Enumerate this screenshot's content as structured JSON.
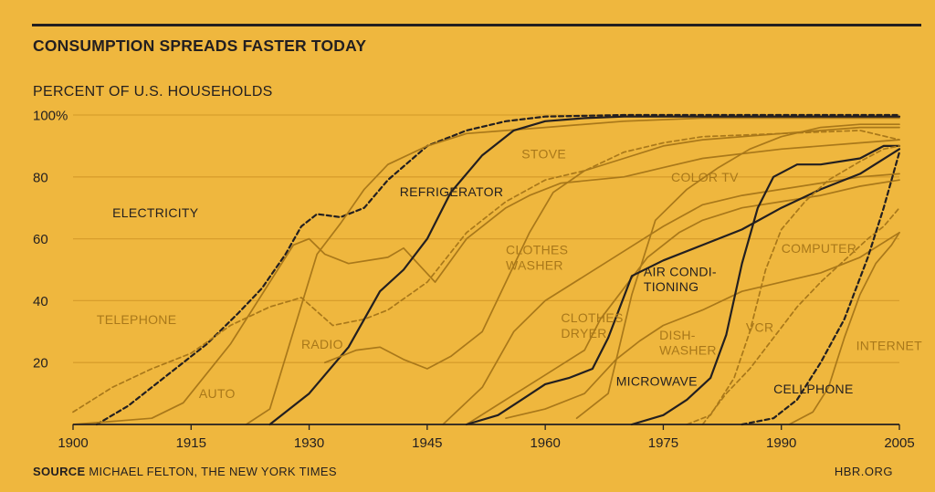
{
  "title": "CONSUMPTION SPREADS FASTER TODAY",
  "source_label": "SOURCE",
  "source_text": "MICHAEL FELTON, THE NEW YORK TIMES",
  "site": "HBR.ORG",
  "colors": {
    "background": "#efb73e",
    "dark": "#231f20",
    "light": "#a9781a",
    "grid": "#d89e2c"
  },
  "chart_data": {
    "type": "line",
    "ylabel": "PERCENT OF U.S. HOUSEHOLDS",
    "xlim": [
      1900,
      2005
    ],
    "ylim": [
      0,
      100
    ],
    "x_ticks": [
      "1900",
      "1915",
      "1930",
      "1945",
      "1960",
      "1975",
      "1990",
      "2005"
    ],
    "y_ticks": [
      "100%",
      "80",
      "60",
      "40",
      "20"
    ],
    "series": [
      {
        "name": "ELECTRICITY",
        "color": "dark",
        "dash": true,
        "points": [
          [
            1903,
            0
          ],
          [
            1907,
            6
          ],
          [
            1912,
            16
          ],
          [
            1917,
            26
          ],
          [
            1921,
            36
          ],
          [
            1924,
            44
          ],
          [
            1927,
            55
          ],
          [
            1929,
            64
          ],
          [
            1931,
            68
          ],
          [
            1934,
            67
          ],
          [
            1937,
            70
          ],
          [
            1940,
            79
          ],
          [
            1945,
            90
          ],
          [
            1950,
            95
          ],
          [
            1955,
            98
          ],
          [
            1960,
            99.5
          ],
          [
            1970,
            100
          ],
          [
            2005,
            100
          ]
        ]
      },
      {
        "name": "TELEPHONE",
        "color": "light",
        "dash": true,
        "points": [
          [
            1900,
            4
          ],
          [
            1905,
            12
          ],
          [
            1910,
            18
          ],
          [
            1915,
            23
          ],
          [
            1920,
            32
          ],
          [
            1925,
            38
          ],
          [
            1929,
            41
          ],
          [
            1933,
            32
          ],
          [
            1937,
            34
          ],
          [
            1940,
            37
          ],
          [
            1945,
            46
          ],
          [
            1950,
            62
          ],
          [
            1955,
            72
          ],
          [
            1960,
            79
          ],
          [
            1965,
            82
          ],
          [
            1970,
            88
          ],
          [
            1975,
            91
          ],
          [
            1980,
            93
          ],
          [
            1990,
            94
          ],
          [
            2000,
            95
          ],
          [
            2005,
            92
          ]
        ]
      },
      {
        "name": "AUTO",
        "color": "light",
        "dash": false,
        "points": [
          [
            1900,
            0
          ],
          [
            1910,
            2
          ],
          [
            1914,
            7
          ],
          [
            1920,
            26
          ],
          [
            1925,
            46
          ],
          [
            1928,
            58
          ],
          [
            1930,
            60
          ],
          [
            1932,
            55
          ],
          [
            1935,
            52
          ],
          [
            1940,
            54
          ],
          [
            1942,
            57
          ],
          [
            1946,
            46
          ],
          [
            1950,
            60
          ],
          [
            1955,
            70
          ],
          [
            1958,
            74
          ],
          [
            1962,
            78
          ],
          [
            1970,
            80
          ],
          [
            1975,
            83
          ],
          [
            1980,
            86
          ],
          [
            1990,
            89
          ],
          [
            2000,
            91
          ],
          [
            2005,
            92
          ]
        ]
      },
      {
        "name": "RADIO",
        "color": "light",
        "dash": false,
        "points": [
          [
            1922,
            0
          ],
          [
            1925,
            5
          ],
          [
            1928,
            30
          ],
          [
            1931,
            55
          ],
          [
            1934,
            65
          ],
          [
            1937,
            76
          ],
          [
            1940,
            84
          ],
          [
            1945,
            90
          ],
          [
            1950,
            94
          ],
          [
            1960,
            96
          ],
          [
            1970,
            98
          ],
          [
            1980,
            99
          ],
          [
            2005,
            99
          ]
        ]
      },
      {
        "name": "REFRIGERATOR",
        "color": "dark",
        "dash": false,
        "points": [
          [
            1925,
            0
          ],
          [
            1930,
            10
          ],
          [
            1935,
            25
          ],
          [
            1939,
            43
          ],
          [
            1942,
            50
          ],
          [
            1945,
            60
          ],
          [
            1948,
            75
          ],
          [
            1952,
            87
          ],
          [
            1956,
            95
          ],
          [
            1960,
            98
          ],
          [
            1965,
            99
          ],
          [
            1970,
            99.5
          ],
          [
            2005,
            99.5
          ]
        ]
      },
      {
        "name": "STOVE",
        "color": "light",
        "dash": false,
        "points": [
          [
            1932,
            20
          ],
          [
            1936,
            24
          ],
          [
            1939,
            25
          ],
          [
            1942,
            21
          ],
          [
            1945,
            18
          ],
          [
            1948,
            22
          ],
          [
            1952,
            30
          ],
          [
            1955,
            46
          ],
          [
            1958,
            62
          ],
          [
            1961,
            75
          ],
          [
            1965,
            82
          ],
          [
            1970,
            86
          ],
          [
            1975,
            90
          ],
          [
            1980,
            92
          ],
          [
            1990,
            94
          ],
          [
            2000,
            96
          ],
          [
            2005,
            96
          ]
        ]
      },
      {
        "name": "CLOTHES WASHER",
        "color": "light",
        "dash": false,
        "points": [
          [
            1947,
            0
          ],
          [
            1952,
            12
          ],
          [
            1956,
            30
          ],
          [
            1960,
            40
          ],
          [
            1965,
            48
          ],
          [
            1970,
            56
          ],
          [
            1975,
            64
          ],
          [
            1980,
            71
          ],
          [
            1985,
            74
          ],
          [
            1990,
            76
          ],
          [
            1995,
            78
          ],
          [
            2000,
            80
          ],
          [
            2005,
            81
          ]
        ]
      },
      {
        "name": "CLOTHES DRYER",
        "color": "light",
        "dash": false,
        "points": [
          [
            1950,
            0
          ],
          [
            1955,
            8
          ],
          [
            1960,
            16
          ],
          [
            1965,
            24
          ],
          [
            1967,
            34
          ],
          [
            1970,
            44
          ],
          [
            1973,
            54
          ],
          [
            1977,
            62
          ],
          [
            1980,
            66
          ],
          [
            1985,
            70
          ],
          [
            1990,
            72
          ],
          [
            1995,
            74
          ],
          [
            2000,
            77
          ],
          [
            2005,
            79
          ]
        ]
      },
      {
        "name": "COLOR TV",
        "color": "light",
        "dash": false,
        "points": [
          [
            1964,
            2
          ],
          [
            1968,
            10
          ],
          [
            1971,
            42
          ],
          [
            1974,
            66
          ],
          [
            1978,
            76
          ],
          [
            1982,
            83
          ],
          [
            1986,
            89
          ],
          [
            1990,
            93
          ],
          [
            1995,
            96
          ],
          [
            2000,
            97
          ],
          [
            2005,
            97
          ]
        ]
      },
      {
        "name": "AIR CONDITIONING",
        "color": "dark",
        "dash": false,
        "points": [
          [
            1950,
            0
          ],
          [
            1954,
            3
          ],
          [
            1957,
            8
          ],
          [
            1960,
            13
          ],
          [
            1963,
            15
          ],
          [
            1966,
            18
          ],
          [
            1968,
            28
          ],
          [
            1971,
            48
          ],
          [
            1975,
            53
          ],
          [
            1980,
            58
          ],
          [
            1985,
            63
          ],
          [
            1990,
            70
          ],
          [
            1995,
            76
          ],
          [
            2000,
            81
          ],
          [
            2005,
            89
          ]
        ]
      },
      {
        "name": "DISHWASHER",
        "color": "light",
        "dash": false,
        "points": [
          [
            1955,
            2
          ],
          [
            1960,
            5
          ],
          [
            1965,
            10
          ],
          [
            1969,
            21
          ],
          [
            1972,
            27
          ],
          [
            1975,
            32
          ],
          [
            1980,
            37
          ],
          [
            1985,
            43
          ],
          [
            1990,
            46
          ],
          [
            1995,
            49
          ],
          [
            2000,
            54
          ],
          [
            2005,
            62
          ]
        ]
      },
      {
        "name": "MICROWAVE",
        "color": "dark",
        "dash": false,
        "points": [
          [
            1971,
            0
          ],
          [
            1975,
            3
          ],
          [
            1978,
            8
          ],
          [
            1981,
            15
          ],
          [
            1983,
            29
          ],
          [
            1985,
            52
          ],
          [
            1987,
            70
          ],
          [
            1989,
            80
          ],
          [
            1992,
            84
          ],
          [
            1995,
            84
          ],
          [
            2000,
            86
          ],
          [
            2003,
            90
          ],
          [
            2005,
            90
          ]
        ]
      },
      {
        "name": "VCR",
        "color": "light",
        "dash": true,
        "points": [
          [
            1978,
            0
          ],
          [
            1981,
            3
          ],
          [
            1984,
            15
          ],
          [
            1986,
            30
          ],
          [
            1988,
            50
          ],
          [
            1990,
            63
          ],
          [
            1993,
            72
          ],
          [
            1996,
            79
          ],
          [
            2000,
            85
          ],
          [
            2003,
            89
          ],
          [
            2005,
            90
          ]
        ]
      },
      {
        "name": "COMPUTER",
        "color": "light",
        "dash": true,
        "points": [
          [
            1980,
            0
          ],
          [
            1983,
            10
          ],
          [
            1986,
            18
          ],
          [
            1989,
            28
          ],
          [
            1992,
            38
          ],
          [
            1995,
            46
          ],
          [
            1998,
            53
          ],
          [
            2001,
            60
          ],
          [
            2003,
            64
          ],
          [
            2005,
            70
          ]
        ]
      },
      {
        "name": "CELLPHONE",
        "color": "dark",
        "dash": true,
        "points": [
          [
            1985,
            0
          ],
          [
            1989,
            2
          ],
          [
            1992,
            8
          ],
          [
            1995,
            20
          ],
          [
            1998,
            34
          ],
          [
            2001,
            54
          ],
          [
            2003,
            70
          ],
          [
            2005,
            88
          ]
        ]
      },
      {
        "name": "INTERNET",
        "color": "light",
        "dash": false,
        "points": [
          [
            1991,
            0
          ],
          [
            1994,
            4
          ],
          [
            1996,
            12
          ],
          [
            1998,
            28
          ],
          [
            2000,
            42
          ],
          [
            2002,
            52
          ],
          [
            2004,
            58
          ],
          [
            2005,
            62
          ]
        ]
      }
    ],
    "labels": [
      {
        "text": "ELECTRICITY",
        "x": 1905,
        "y": 67,
        "color": "dark"
      },
      {
        "text": "TELEPHONE",
        "x": 1903,
        "y": 32.5,
        "color": "light"
      },
      {
        "text": "AUTO",
        "x": 1916,
        "y": 8.5,
        "color": "light"
      },
      {
        "text": "RADIO",
        "x": 1929,
        "y": 24.5,
        "color": "light"
      },
      {
        "text": "REFRIGERATOR",
        "x": 1941.5,
        "y": 73.8,
        "color": "dark"
      },
      {
        "text": "STOVE",
        "x": 1957,
        "y": 86,
        "color": "light"
      },
      {
        "text": "CLOTHES",
        "x": 1955,
        "y": 55,
        "color": "light"
      },
      {
        "text": "WASHER",
        "x": 1955,
        "y": 50,
        "color": "light"
      },
      {
        "text": "COLOR TV",
        "x": 1976,
        "y": 78.5,
        "color": "light"
      },
      {
        "text": "CLOTHES",
        "x": 1962,
        "y": 33,
        "color": "light"
      },
      {
        "text": "DRYER",
        "x": 1962,
        "y": 28,
        "color": "light"
      },
      {
        "text": "AIR CONDI-",
        "x": 1972.5,
        "y": 48,
        "color": "dark"
      },
      {
        "text": "TIONING",
        "x": 1972.5,
        "y": 43,
        "color": "dark"
      },
      {
        "text": "DISH-",
        "x": 1974.5,
        "y": 27.5,
        "color": "light"
      },
      {
        "text": "WASHER",
        "x": 1974.5,
        "y": 22.5,
        "color": "light"
      },
      {
        "text": "MICROWAVE",
        "x": 1969,
        "y": 12.5,
        "color": "dark"
      },
      {
        "text": "VCR",
        "x": 1985.5,
        "y": 30,
        "color": "light"
      },
      {
        "text": "COMPUTER",
        "x": 1990,
        "y": 55.5,
        "color": "light"
      },
      {
        "text": "CELLPHONE",
        "x": 1989,
        "y": 10,
        "color": "dark"
      },
      {
        "text": "INTERNET",
        "x": 1999.5,
        "y": 24,
        "color": "light"
      }
    ]
  }
}
